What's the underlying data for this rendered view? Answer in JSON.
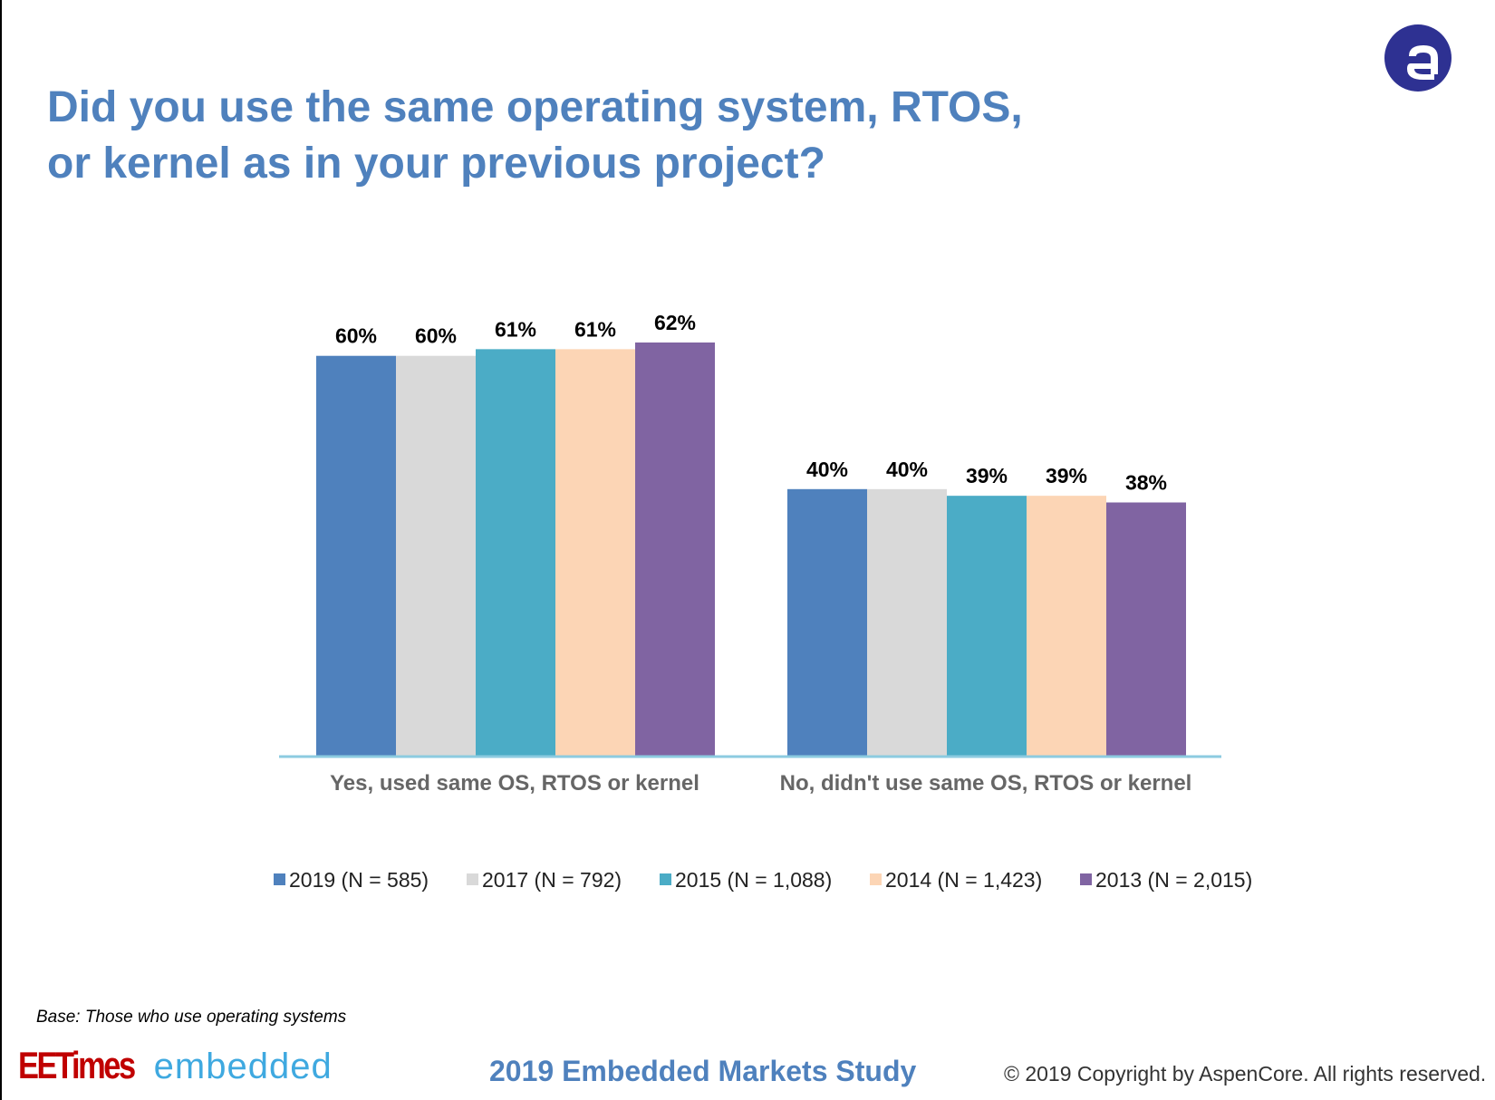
{
  "title_line1": "Did you use the same operating system, RTOS,",
  "title_line2": "or kernel as in your previous project?",
  "logo_icon": "aspencore-logo-icon",
  "chart_data": {
    "type": "bar",
    "categories": [
      "Yes, used same OS, RTOS or kernel",
      "No, didn't use same OS, RTOS or kernel"
    ],
    "series": [
      {
        "name": "2019 (N = 585)",
        "values": [
          60,
          40
        ],
        "labels": [
          "60%",
          "40%"
        ],
        "color": "#4f81bd"
      },
      {
        "name": "2017 (N = 792)",
        "values": [
          60,
          40
        ],
        "labels": [
          "60%",
          "40%"
        ],
        "color": "#d9d9d9"
      },
      {
        "name": "2015 (N = 1,088)",
        "values": [
          61,
          39
        ],
        "labels": [
          "61%",
          "39%"
        ],
        "color": "#4bacc6"
      },
      {
        "name": "2014 (N = 1,423)",
        "values": [
          61,
          39
        ],
        "labels": [
          "61%",
          "39%"
        ],
        "color": "#fcd5b5"
      },
      {
        "name": "2013 (N = 2,015)",
        "values": [
          62,
          38
        ],
        "labels": [
          "62%",
          "38%"
        ],
        "color": "#8064a2"
      }
    ],
    "ylim": [
      0,
      62
    ],
    "axis_color": "#8ccbe0",
    "grid": false,
    "legend_position": "bottom"
  },
  "footer": {
    "base_note": "Base: Those who use operating systems",
    "brand_left": "EETimes",
    "brand_right": "embedded",
    "study": "2019 Embedded Markets Study",
    "copyright": "© 2019 Copyright by AspenCore. All rights reserved."
  }
}
